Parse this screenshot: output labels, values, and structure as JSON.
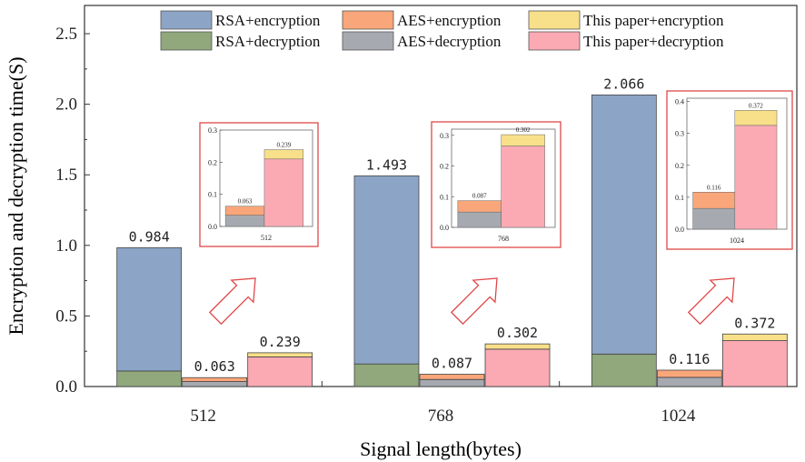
{
  "chart_data": {
    "type": "bar",
    "stacked": true,
    "xlabel": "Signal length(bytes)",
    "ylabel": "Encryption and decryption time(S)",
    "ylim": [
      0,
      2.7
    ],
    "yticks": [
      "0.0",
      "0.5",
      "1.0",
      "1.5",
      "2.0",
      "2.5"
    ],
    "categories": [
      "512",
      "768",
      "1024"
    ],
    "legend_position": "top",
    "colors": {
      "rsa_enc": "#8ca5c6",
      "rsa_dec": "#90a87c",
      "aes_enc": "#f8a67a",
      "aes_dec": "#a6aab0",
      "paper_enc": "#f8e08a",
      "paper_dec": "#fbaab4",
      "inset_border": "#e04848",
      "arrow": "#e04848"
    },
    "series": [
      {
        "name": "RSA+encryption",
        "key": "rsa_enc",
        "values": [
          0.874,
          1.333,
          1.836
        ]
      },
      {
        "name": "RSA+decryption",
        "key": "rsa_dec",
        "values": [
          0.11,
          0.16,
          0.23
        ]
      },
      {
        "name": "AES+encryption",
        "key": "aes_enc",
        "values": [
          0.028,
          0.037,
          0.051
        ]
      },
      {
        "name": "AES+decryption",
        "key": "aes_dec",
        "values": [
          0.035,
          0.05,
          0.065
        ]
      },
      {
        "name": "This paper+encryption",
        "key": "paper_enc",
        "values": [
          0.029,
          0.037,
          0.047
        ]
      },
      {
        "name": "This paper+decryption",
        "key": "paper_dec",
        "values": [
          0.21,
          0.265,
          0.325
        ]
      }
    ],
    "totals": [
      {
        "rsa": "0.984",
        "aes": "0.063",
        "paper": "0.239"
      },
      {
        "rsa": "1.493",
        "aes": "0.087",
        "paper": "0.302"
      },
      {
        "rsa": "2.066",
        "aes": "0.116",
        "paper": "0.372"
      }
    ],
    "insets": [
      {
        "category": "512",
        "ylim": [
          0,
          0.3
        ],
        "yticks": [
          "0.0",
          "0.1",
          "0.2",
          "0.3"
        ],
        "aes_label": "0.063",
        "paper_label": "0.239"
      },
      {
        "category": "768",
        "ylim": [
          0,
          0.32
        ],
        "yticks": [
          "0.0",
          "0.1",
          "0.2",
          "0.3"
        ],
        "aes_label": "0.087",
        "paper_label": "0.302"
      },
      {
        "category": "1024",
        "ylim": [
          0,
          0.41
        ],
        "yticks": [
          "0.0",
          "0.1",
          "0.2",
          "0.3",
          "0.4"
        ],
        "aes_label": "0.116",
        "paper_label": "0.372"
      }
    ]
  }
}
